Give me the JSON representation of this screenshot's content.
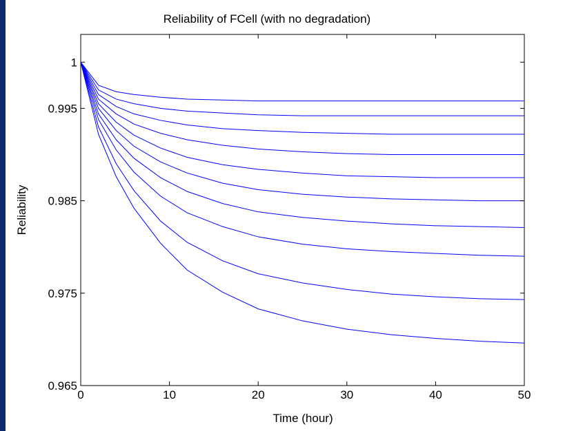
{
  "page": {
    "background_color": "#0e2a6e"
  },
  "chart_data": {
    "type": "line",
    "title": "Reliability of FCell (with no degradation)",
    "xlabel": "Time (hour)",
    "ylabel": "Reliability",
    "xlim": [
      0,
      50
    ],
    "ylim": [
      0.965,
      1.003
    ],
    "xticks": [
      0,
      10,
      20,
      30,
      40,
      50
    ],
    "xtick_labels": [
      "0",
      "10",
      "20",
      "30",
      "40",
      "50"
    ],
    "yticks": [
      0.965,
      0.975,
      0.985,
      0.995,
      1
    ],
    "ytick_labels": [
      "0.965",
      "0.975",
      "0.985",
      "0.995",
      "1"
    ],
    "grid": false,
    "legend": false,
    "line_color": "#0000ff",
    "x": [
      0,
      2,
      4,
      6,
      9,
      12,
      16,
      20,
      25,
      30,
      35,
      40,
      45,
      50
    ],
    "series": [
      {
        "values": [
          1.0,
          0.9975,
          0.9968,
          0.9965,
          0.9962,
          0.996,
          0.9959,
          0.9958,
          0.9958,
          0.9958,
          0.9958,
          0.9958,
          0.9958,
          0.9958
        ]
      },
      {
        "values": [
          1.0,
          0.997,
          0.996,
          0.9955,
          0.995,
          0.9947,
          0.9945,
          0.9943,
          0.9942,
          0.9942,
          0.9942,
          0.9942,
          0.9942,
          0.9942
        ]
      },
      {
        "values": [
          1.0,
          0.9965,
          0.9952,
          0.9944,
          0.9937,
          0.9932,
          0.9928,
          0.9926,
          0.9924,
          0.9923,
          0.9922,
          0.9922,
          0.9922,
          0.9922
        ]
      },
      {
        "values": [
          1.0,
          0.996,
          0.9944,
          0.9933,
          0.9923,
          0.9916,
          0.991,
          0.9906,
          0.9903,
          0.9901,
          0.99,
          0.99,
          0.99,
          0.99
        ]
      },
      {
        "values": [
          1.0,
          0.9955,
          0.9935,
          0.9921,
          0.9907,
          0.9897,
          0.9889,
          0.9884,
          0.988,
          0.9877,
          0.9876,
          0.9875,
          0.9875,
          0.9875
        ]
      },
      {
        "values": [
          1.0,
          0.995,
          0.9926,
          0.9909,
          0.9892,
          0.988,
          0.9869,
          0.9862,
          0.9857,
          0.9854,
          0.9852,
          0.9851,
          0.985,
          0.985
        ]
      },
      {
        "values": [
          1.0,
          0.9944,
          0.9916,
          0.9896,
          0.9875,
          0.986,
          0.9847,
          0.9838,
          0.9832,
          0.9828,
          0.9825,
          0.9823,
          0.9822,
          0.9821
        ]
      },
      {
        "values": [
          1.0,
          0.9938,
          0.9905,
          0.9881,
          0.9855,
          0.9837,
          0.9822,
          0.9811,
          0.9803,
          0.9798,
          0.9795,
          0.9793,
          0.9791,
          0.979
        ]
      },
      {
        "values": [
          1.0,
          0.993,
          0.989,
          0.9861,
          0.9828,
          0.9805,
          0.9785,
          0.9771,
          0.9761,
          0.9754,
          0.9749,
          0.9746,
          0.9744,
          0.9743
        ]
      },
      {
        "values": [
          1.0,
          0.9922,
          0.9876,
          0.9842,
          0.9804,
          0.9775,
          0.9751,
          0.9733,
          0.972,
          0.9711,
          0.9705,
          0.9701,
          0.9698,
          0.9696
        ]
      }
    ]
  }
}
